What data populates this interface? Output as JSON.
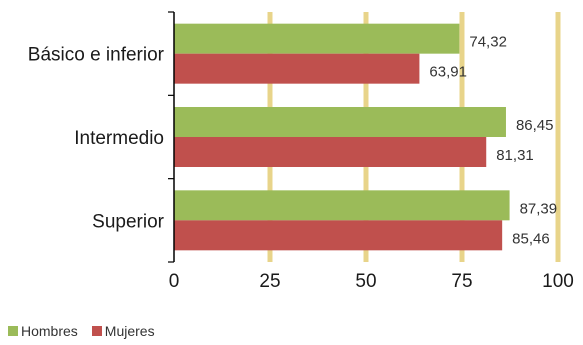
{
  "chart_data": {
    "type": "bar",
    "orientation": "horizontal",
    "categories": [
      "Básico e inferior",
      "Intermedio",
      "Superior"
    ],
    "series": [
      {
        "name": "Hombres",
        "values": [
          74.32,
          86.45,
          87.39
        ],
        "labels": [
          "74,32",
          "86,45",
          "87,39"
        ],
        "color": "#9bbb59"
      },
      {
        "name": "Mujeres",
        "values": [
          63.91,
          81.31,
          85.46
        ],
        "labels": [
          "63,91",
          "81,31",
          "85,46"
        ],
        "color": "#c0504d"
      }
    ],
    "xlim": [
      0,
      100
    ],
    "xticks": [
      0,
      25,
      50,
      75,
      100
    ],
    "xtick_labels": [
      "0",
      "25",
      "50",
      "75",
      "100"
    ],
    "grid": true,
    "grid_color": "#e8d48a",
    "legend_position": "bottom-left",
    "title": "",
    "xlabel": "",
    "ylabel": ""
  }
}
